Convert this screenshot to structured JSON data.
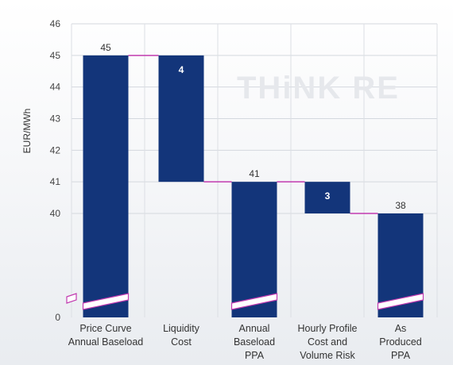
{
  "watermark": "THiNK RE",
  "chart_data": {
    "type": "bar",
    "subtype": "waterfall",
    "title": "",
    "xlabel": "",
    "ylabel": "EUR/MWh",
    "broken_axis": true,
    "ylim": [
      0,
      46
    ],
    "y_ticks": [
      0,
      40,
      41,
      42,
      43,
      44,
      45,
      46
    ],
    "grid": true,
    "legend": "none",
    "colors": {
      "bar": "#13357a",
      "connector": "#c23bb0",
      "break_band": "#ffffff"
    },
    "categories": [
      [
        "Price Curve",
        "Annual Baseload"
      ],
      [
        "Liquidity",
        "Cost"
      ],
      [
        "Annual",
        "Baseload",
        "PPA"
      ],
      [
        "Hourly Profile",
        "Cost and",
        "Volume Risk"
      ],
      [
        "As",
        "Produced",
        "PPA"
      ]
    ],
    "bars": [
      {
        "start": 0,
        "end": 45,
        "label": "45",
        "kind": "total"
      },
      {
        "start": 41,
        "end": 45,
        "label": "4",
        "kind": "delta"
      },
      {
        "start": 0,
        "end": 41,
        "label": "41",
        "kind": "total"
      },
      {
        "start": 38.4,
        "end": 41,
        "label": "3",
        "kind": "delta"
      },
      {
        "start": 0,
        "end": 38.4,
        "label": "38",
        "kind": "total"
      }
    ]
  }
}
